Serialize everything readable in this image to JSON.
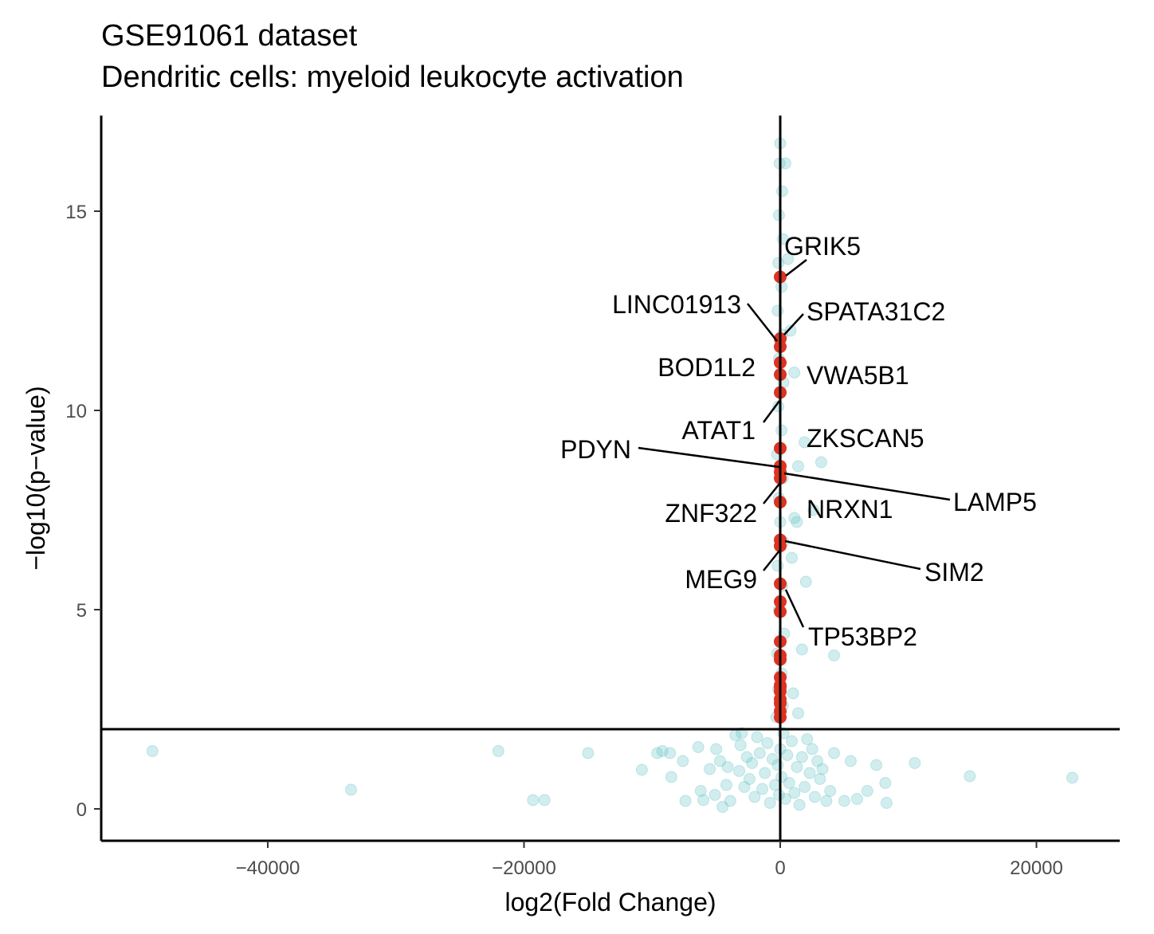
{
  "chart_data": {
    "type": "scatter",
    "title": "GSE91061 dataset",
    "subtitle": "Dendritic cells: myeloid leukocyte activation",
    "xlabel": "log2(Fold Change)",
    "ylabel": "−log10(p−value)",
    "xlim": [
      -53000,
      26500
    ],
    "ylim": [
      -0.8,
      17.4
    ],
    "x_ticks": [
      -40000,
      -20000,
      0,
      20000
    ],
    "x_tick_labels": [
      "−40000",
      "−20000",
      "0",
      "20000"
    ],
    "y_ticks": [
      0,
      5,
      10,
      15
    ],
    "y_tick_labels": [
      "0",
      "5",
      "10",
      "15"
    ],
    "reference_lines": {
      "vertical_x": 0,
      "horizontal_y": 2
    },
    "colors": {
      "background_points": "#66c2c8",
      "highlighted_points": "#dd3322",
      "lines": "#000000"
    },
    "grid": false,
    "legend": "none",
    "background_points": [
      [
        -49000,
        1.45
      ],
      [
        -33500,
        0.48
      ],
      [
        -22000,
        1.45
      ],
      [
        -19300,
        0.22
      ],
      [
        -18400,
        0.22
      ],
      [
        -15000,
        1.4
      ],
      [
        -10800,
        0.98
      ],
      [
        -9600,
        1.4
      ],
      [
        -9200,
        1.45
      ],
      [
        -8600,
        1.4
      ],
      [
        -8500,
        0.8
      ],
      [
        -7600,
        1.2
      ],
      [
        -7400,
        0.2
      ],
      [
        -6400,
        1.55
      ],
      [
        -6200,
        0.45
      ],
      [
        -6000,
        0.22
      ],
      [
        -5500,
        1.0
      ],
      [
        -5100,
        0.35
      ],
      [
        -5000,
        1.5
      ],
      [
        -4700,
        1.2
      ],
      [
        -4500,
        0.05
      ],
      [
        -4200,
        0.6
      ],
      [
        -4100,
        1.05
      ],
      [
        -3900,
        0.2
      ],
      [
        -3500,
        1.85
      ],
      [
        -3200,
        0.95
      ],
      [
        -3100,
        1.6
      ],
      [
        -3000,
        1.9
      ],
      [
        -2800,
        0.55
      ],
      [
        -2600,
        1.3
      ],
      [
        -2400,
        0.75
      ],
      [
        -2200,
        1.15
      ],
      [
        -2000,
        0.3
      ],
      [
        -1800,
        1.8
      ],
      [
        -1600,
        1.4
      ],
      [
        -1400,
        0.5
      ],
      [
        -1200,
        0.9
      ],
      [
        -1000,
        1.65
      ],
      [
        -800,
        0.15
      ],
      [
        -600,
        1.25
      ],
      [
        -400,
        0.6
      ],
      [
        -200,
        1.1
      ],
      [
        -100,
        0.35
      ],
      [
        0,
        1.5
      ],
      [
        100,
        0.8
      ],
      [
        250,
        1.9
      ],
      [
        400,
        0.25
      ],
      [
        550,
        1.35
      ],
      [
        700,
        0.65
      ],
      [
        900,
        1.7
      ],
      [
        1100,
        0.4
      ],
      [
        1300,
        1.05
      ],
      [
        1500,
        0.1
      ],
      [
        1700,
        1.3
      ],
      [
        1900,
        0.55
      ],
      [
        2100,
        1.75
      ],
      [
        2300,
        0.9
      ],
      [
        2500,
        1.5
      ],
      [
        2700,
        0.3
      ],
      [
        2900,
        1.2
      ],
      [
        3100,
        0.75
      ],
      [
        3300,
        1.0
      ],
      [
        3600,
        0.2
      ],
      [
        3900,
        0.45
      ],
      [
        4200,
        1.4
      ],
      [
        5000,
        0.2
      ],
      [
        5500,
        1.2
      ],
      [
        6000,
        0.25
      ],
      [
        6800,
        0.45
      ],
      [
        7500,
        1.1
      ],
      [
        8200,
        0.65
      ],
      [
        8300,
        0.15
      ],
      [
        10500,
        1.15
      ],
      [
        14800,
        0.82
      ],
      [
        22800,
        0.78
      ],
      [
        -300,
        2.3
      ],
      [
        200,
        2.6
      ],
      [
        -150,
        3.0
      ],
      [
        100,
        3.4
      ],
      [
        -250,
        3.9
      ],
      [
        300,
        4.4
      ],
      [
        -100,
        5.0
      ],
      [
        150,
        5.6
      ],
      [
        -200,
        6.1
      ],
      [
        250,
        6.7
      ],
      [
        0,
        7.2
      ],
      [
        -100,
        7.8
      ],
      [
        200,
        8.3
      ],
      [
        -250,
        8.9
      ],
      [
        100,
        9.5
      ],
      [
        -150,
        10.1
      ],
      [
        250,
        10.7
      ],
      [
        -100,
        11.3
      ],
      [
        150,
        11.9
      ],
      [
        -200,
        12.5
      ],
      [
        100,
        13.1
      ],
      [
        -150,
        13.7
      ],
      [
        200,
        14.3
      ],
      [
        -100,
        14.9
      ],
      [
        150,
        15.5
      ],
      [
        -50,
        16.2
      ],
      [
        0,
        16.7
      ],
      [
        400,
        16.2
      ],
      [
        1100,
        10.95
      ],
      [
        3200,
        8.7
      ],
      [
        1100,
        7.3
      ],
      [
        1300,
        7.2
      ],
      [
        1000,
        2.9
      ],
      [
        1400,
        2.4
      ],
      [
        2000,
        5.7
      ],
      [
        2600,
        7.5
      ],
      [
        4200,
        3.85
      ],
      [
        1700,
        4.0
      ],
      [
        1900,
        9.2
      ],
      [
        1400,
        8.6
      ],
      [
        800,
        12.0
      ],
      [
        600,
        13.8
      ],
      [
        900,
        6.3
      ]
    ],
    "highlighted_points": [
      [
        0,
        13.35
      ],
      [
        0,
        11.8
      ],
      [
        0,
        11.6
      ],
      [
        0,
        11.2
      ],
      [
        0,
        10.9
      ],
      [
        0,
        10.45
      ],
      [
        0,
        9.05
      ],
      [
        0,
        8.6
      ],
      [
        0,
        8.45
      ],
      [
        0,
        8.3
      ],
      [
        0,
        7.7
      ],
      [
        0,
        6.75
      ],
      [
        0,
        6.6
      ],
      [
        0,
        5.65
      ],
      [
        0,
        5.2
      ],
      [
        0,
        4.95
      ],
      [
        0,
        4.2
      ],
      [
        0,
        3.85
      ],
      [
        0,
        3.75
      ],
      [
        0,
        3.3
      ],
      [
        0,
        3.1
      ],
      [
        0,
        3.05
      ],
      [
        0,
        2.95
      ],
      [
        0,
        2.75
      ],
      [
        0,
        2.65
      ],
      [
        0,
        2.45
      ],
      [
        0,
        2.3
      ]
    ],
    "labels": [
      {
        "text": "GRIK5",
        "x": 0,
        "y": 13.35
      },
      {
        "text": "LINC01913",
        "x": 0,
        "y": 11.7
      },
      {
        "text": "SPATA31C2",
        "x": 0,
        "y": 11.9
      },
      {
        "text": "BOD1L2",
        "x": 0,
        "y": 11.2
      },
      {
        "text": "VWA5B1",
        "x": 0,
        "y": 10.9
      },
      {
        "text": "ATAT1",
        "x": 0,
        "y": 10.45
      },
      {
        "text": "ZKSCAN5",
        "x": 0,
        "y": 9.05
      },
      {
        "text": "PDYN",
        "x": 0,
        "y": 8.6
      },
      {
        "text": "LAMP5",
        "x": 0,
        "y": 8.45
      },
      {
        "text": "ZNF322",
        "x": 0,
        "y": 8.3
      },
      {
        "text": "NRXN1",
        "x": 0,
        "y": 7.7
      },
      {
        "text": "SIM2",
        "x": 0,
        "y": 6.75
      },
      {
        "text": "MEG9",
        "x": 0,
        "y": 6.6
      },
      {
        "text": "TP53BP2",
        "x": 0,
        "y": 5.65
      }
    ]
  }
}
